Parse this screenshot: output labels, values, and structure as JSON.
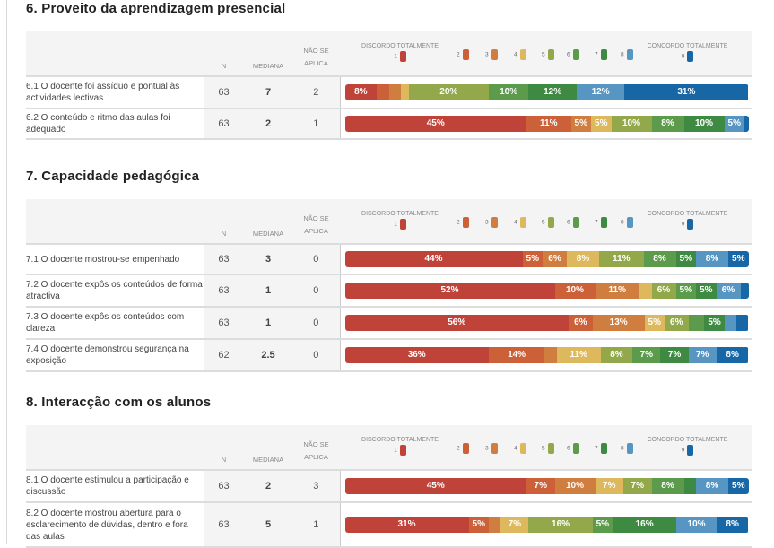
{
  "colors": {
    "1": "#c0433a",
    "2": "#cc6139",
    "3": "#d07d40",
    "4": "#ddb85c",
    "5": "#93a84a",
    "6": "#5c9a4c",
    "7": "#3f8a42",
    "8": "#5795c3",
    "9": "#1767a6"
  },
  "table_headers": {
    "n": "N",
    "median": "MEDIANA",
    "na_line1": "NÃO SE",
    "na_line2": "APLICA",
    "legend_low": "DISCORDO TOTALMENTE",
    "legend_high": "CONCORDO TOTALMENTE",
    "legend_levels": [
      "1",
      "2",
      "3",
      "4",
      "5",
      "6",
      "7",
      "8",
      "9"
    ]
  },
  "chart_data": {
    "type": "bar",
    "subtype": "stacked-horizontal-100",
    "scale_labels": {
      "low": "DISCORDO TOTALMENTE",
      "high": "CONCORDO TOTALMENTE"
    },
    "categories": [
      "1",
      "2",
      "3",
      "4",
      "5",
      "6",
      "7",
      "8",
      "9"
    ],
    "sections": [
      {
        "title": "6. Proveito da aprendizagem presencial",
        "rows": [
          {
            "question": "6.1 O docente foi assíduo e pontual às actividades lectivas",
            "n": "63",
            "median": "7",
            "na": "2",
            "values": [
              8,
              3,
              3,
              2,
              20,
              10,
              12,
              12,
              31
            ],
            "labels": [
              "8%",
              "",
              "",
              "",
              "20%",
              "10%",
              "12%",
              "12%",
              "31%"
            ]
          },
          {
            "question": "6.2 O conteúdo e ritmo das aulas foi adequado",
            "n": "63",
            "median": "2",
            "na": "1",
            "values": [
              45,
              11,
              5,
              5,
              10,
              8,
              10,
              5,
              1
            ],
            "labels": [
              "45%",
              "11%",
              "5%",
              "5%",
              "10%",
              "8%",
              "10%",
              "5%",
              ""
            ]
          }
        ]
      },
      {
        "title": "7. Capacidade pedagógica",
        "rows": [
          {
            "question": "7.1 O docente mostrou-se empenhado",
            "n": "63",
            "median": "3",
            "na": "0",
            "values": [
              44,
              5,
              6,
              8,
              11,
              8,
              5,
              8,
              5
            ],
            "labels": [
              "44%",
              "5%",
              "6%",
              "8%",
              "11%",
              "8%",
              "5%",
              "8%",
              "5%"
            ]
          },
          {
            "question": "7.2 O docente expôs os conteúdos de forma atractiva",
            "n": "63",
            "median": "1",
            "na": "0",
            "values": [
              52,
              10,
              11,
              3,
              6,
              5,
              5,
              6,
              2
            ],
            "labels": [
              "52%",
              "10%",
              "11%",
              "",
              "6%",
              "5%",
              "5%",
              "6%",
              ""
            ]
          },
          {
            "question": "7.3 O docente expôs os conteúdos com clareza",
            "n": "63",
            "median": "1",
            "na": "0",
            "values": [
              56,
              6,
              13,
              5,
              6,
              4,
              5,
              3,
              3
            ],
            "labels": [
              "56%",
              "6%",
              "13%",
              "5%",
              "6%",
              "",
              "5%",
              "",
              ""
            ]
          },
          {
            "question": "7.4 O docente demonstrou segurança na exposição",
            "n": "62",
            "median": "2.5",
            "na": "0",
            "values": [
              36,
              14,
              3,
              11,
              8,
              7,
              7,
              7,
              8
            ],
            "labels": [
              "36%",
              "14%",
              "",
              "11%",
              "8%",
              "7%",
              "7%",
              "7%",
              "8%"
            ]
          }
        ]
      },
      {
        "title": "8. Interacção com os alunos",
        "rows": [
          {
            "question": "8.1 O docente estimulou a participação e discussão",
            "n": "63",
            "median": "2",
            "na": "3",
            "values": [
              45,
              7,
              10,
              7,
              7,
              8,
              3,
              8,
              5
            ],
            "labels": [
              "45%",
              "7%",
              "10%",
              "7%",
              "7%",
              "8%",
              "",
              "8%",
              "5%"
            ]
          },
          {
            "question": "8.2 O docente mostrou abertura para o esclarecimento de dúvidas, dentro e fora das aulas",
            "n": "63",
            "median": "5",
            "na": "1",
            "values": [
              31,
              5,
              3,
              7,
              16,
              5,
              16,
              10,
              8
            ],
            "labels": [
              "31%",
              "5%",
              "",
              "7%",
              "16%",
              "5%",
              "16%",
              "10%",
              "8%"
            ]
          }
        ]
      }
    ]
  }
}
